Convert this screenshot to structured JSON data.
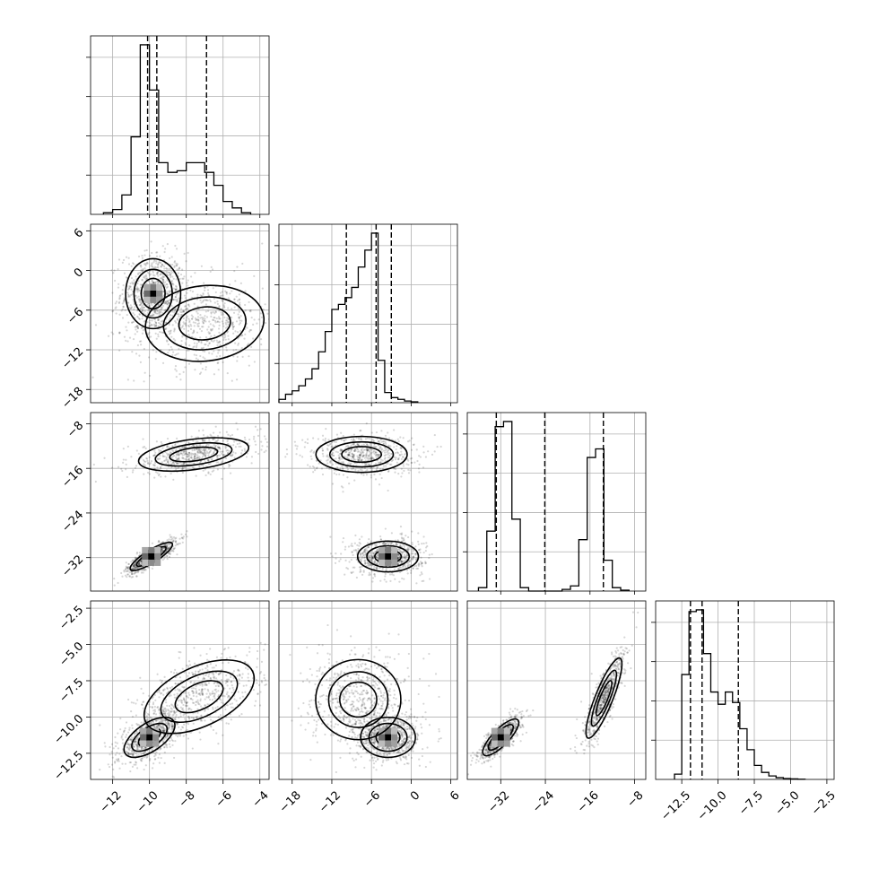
{
  "chart_data": {
    "type": "scatter",
    "subtype": "corner-plot",
    "parameters": 4,
    "axis_ranges": [
      [
        -13.2,
        -3.5
      ],
      [
        -20.0,
        7.0
      ],
      [
        -38.0,
        -6.0
      ],
      [
        -14.3,
        -2.0
      ]
    ],
    "grid": true,
    "x_ticks": [
      {
        "values": [
          -12,
          -10,
          -8,
          -6,
          -4
        ],
        "labels": [
          "−12",
          "−10",
          "−8",
          "−6",
          "−4"
        ]
      },
      {
        "values": [
          -18,
          -12,
          -6,
          0,
          6
        ],
        "labels": [
          "−18",
          "−12",
          "−6",
          "0",
          "6"
        ]
      },
      {
        "values": [
          -32,
          -24,
          -16,
          -8
        ],
        "labels": [
          "−32",
          "−24",
          "−16",
          "−8"
        ]
      },
      {
        "values": [
          -12.5,
          -10.0,
          -7.5,
          -5.0,
          -2.5
        ],
        "labels": [
          "−12.5",
          "−10.0",
          "−7.5",
          "−5.0",
          "−2.5"
        ]
      }
    ],
    "y_ticks": [
      null,
      {
        "values": [
          6,
          0,
          -6,
          -12,
          -18
        ],
        "labels": [
          "6",
          "0",
          "−6",
          "−12",
          "−18"
        ]
      },
      {
        "values": [
          -8,
          -16,
          -24,
          -32
        ],
        "labels": [
          "−8",
          "−16",
          "−24",
          "−32"
        ]
      },
      {
        "values": [
          -2.5,
          -5.0,
          -7.5,
          -10.0,
          -12.5
        ],
        "labels": [
          "−2.5",
          "−5.0",
          "−7.5",
          "−10.0",
          "−12.5"
        ]
      }
    ],
    "histograms": [
      {
        "param": 0,
        "bin_edges": [
          -12.5,
          -12.0,
          -11.5,
          -11.0,
          -10.5,
          -10.0,
          -9.5,
          -9.0,
          -8.5,
          -8.0,
          -7.5,
          -7.0,
          -6.5,
          -6.0,
          -5.5,
          -5.0,
          -4.5
        ],
        "counts": [
          0.01,
          0.03,
          0.12,
          0.48,
          1.05,
          0.77,
          0.32,
          0.26,
          0.27,
          0.32,
          0.32,
          0.26,
          0.18,
          0.08,
          0.04,
          0.01
        ],
        "quantiles": [
          -10.1,
          -9.6,
          -6.9
        ]
      },
      {
        "param": 1,
        "bin_edges": [
          -20.0,
          -19.0,
          -18.0,
          -17.0,
          -16.0,
          -15.0,
          -14.0,
          -13.0,
          -12.0,
          -11.0,
          -10.0,
          -9.0,
          -8.0,
          -7.0,
          -6.0,
          -5.0,
          -4.0,
          -3.0,
          -2.0,
          -1.0,
          0.0,
          1.0
        ],
        "counts": [
          0.02,
          0.05,
          0.07,
          0.1,
          0.14,
          0.2,
          0.3,
          0.42,
          0.55,
          0.58,
          0.62,
          0.68,
          0.8,
          0.9,
          1.0,
          0.25,
          0.06,
          0.03,
          0.02,
          0.01,
          0.005
        ],
        "quantiles": [
          -9.8,
          -5.3,
          -3.0
        ]
      },
      {
        "param": 2,
        "bin_edges": [
          -36.0,
          -34.5,
          -33.0,
          -31.5,
          -30.0,
          -28.5,
          -27.0,
          -25.5,
          -24.0,
          -22.5,
          -21.0,
          -19.5,
          -18.0,
          -16.5,
          -15.0,
          -13.5,
          -12.0,
          -10.5,
          -9.0
        ],
        "counts": [
          0.02,
          0.35,
          0.96,
          0.99,
          0.42,
          0.02,
          0.0,
          0.0,
          0.0,
          0.0,
          0.01,
          0.03,
          0.3,
          0.78,
          0.83,
          0.18,
          0.02,
          0.005
        ],
        "quantiles": [
          -32.8,
          -24.1,
          -13.6
        ]
      },
      {
        "param": 3,
        "bin_edges": [
          -13.0,
          -12.5,
          -12.0,
          -11.5,
          -11.0,
          -10.5,
          -10.0,
          -9.5,
          -9.0,
          -8.5,
          -8.0,
          -7.5,
          -7.0,
          -6.5,
          -6.0,
          -5.5,
          -5.0,
          -4.5,
          -4.0
        ],
        "counts": [
          0.03,
          0.6,
          0.96,
          0.97,
          0.72,
          0.5,
          0.43,
          0.5,
          0.44,
          0.29,
          0.17,
          0.08,
          0.04,
          0.02,
          0.01,
          0.005,
          0.003,
          0.001
        ],
        "quantiles": [
          -11.9,
          -11.1,
          -8.6
        ]
      }
    ],
    "pair_clusters": [
      {
        "x": 0,
        "y": 1,
        "modes": [
          {
            "mx": -9.8,
            "my": -3.5,
            "sx": 0.65,
            "sy": 2.3,
            "rho": 0.0,
            "w": 0.55
          },
          {
            "mx": -7.0,
            "my": -8.0,
            "sx": 1.4,
            "sy": 2.5,
            "rho": 0.1,
            "w": 0.45
          }
        ]
      },
      {
        "x": 0,
        "y": 2,
        "modes": [
          {
            "mx": -9.9,
            "my": -31.8,
            "sx": 0.5,
            "sy": 1.1,
            "rho": 0.85,
            "w": 0.55
          },
          {
            "mx": -7.6,
            "my": -13.5,
            "sx": 1.3,
            "sy": 1.3,
            "rho": 0.4,
            "w": 0.45
          }
        ]
      },
      {
        "x": 0,
        "y": 3,
        "modes": [
          {
            "mx": -10.0,
            "my": -11.4,
            "sx": 0.6,
            "sy": 0.6,
            "rho": 0.6,
            "w": 0.55
          },
          {
            "mx": -7.3,
            "my": -8.6,
            "sx": 1.3,
            "sy": 1.1,
            "rho": 0.5,
            "w": 0.45
          }
        ]
      },
      {
        "x": 1,
        "y": 2,
        "modes": [
          {
            "mx": -3.5,
            "my": -31.8,
            "sx": 2.0,
            "sy": 1.2,
            "rho": 0.0,
            "w": 0.55
          },
          {
            "mx": -7.5,
            "my": -13.5,
            "sx": 3.0,
            "sy": 1.4,
            "rho": 0.0,
            "w": 0.45
          }
        ]
      },
      {
        "x": 1,
        "y": 3,
        "modes": [
          {
            "mx": -3.5,
            "my": -11.4,
            "sx": 1.8,
            "sy": 0.6,
            "rho": 0.0,
            "w": 0.55
          },
          {
            "mx": -8.0,
            "my": -8.8,
            "sx": 2.8,
            "sy": 1.2,
            "rho": 0.0,
            "w": 0.45
          }
        ]
      },
      {
        "x": 2,
        "y": 3,
        "modes": [
          {
            "mx": -32.0,
            "my": -11.4,
            "sx": 1.4,
            "sy": 0.55,
            "rho": 0.8,
            "w": 0.55
          },
          {
            "mx": -13.5,
            "my": -8.7,
            "sx": 1.4,
            "sy": 1.2,
            "rho": 0.85,
            "w": 0.45
          }
        ]
      }
    ]
  }
}
